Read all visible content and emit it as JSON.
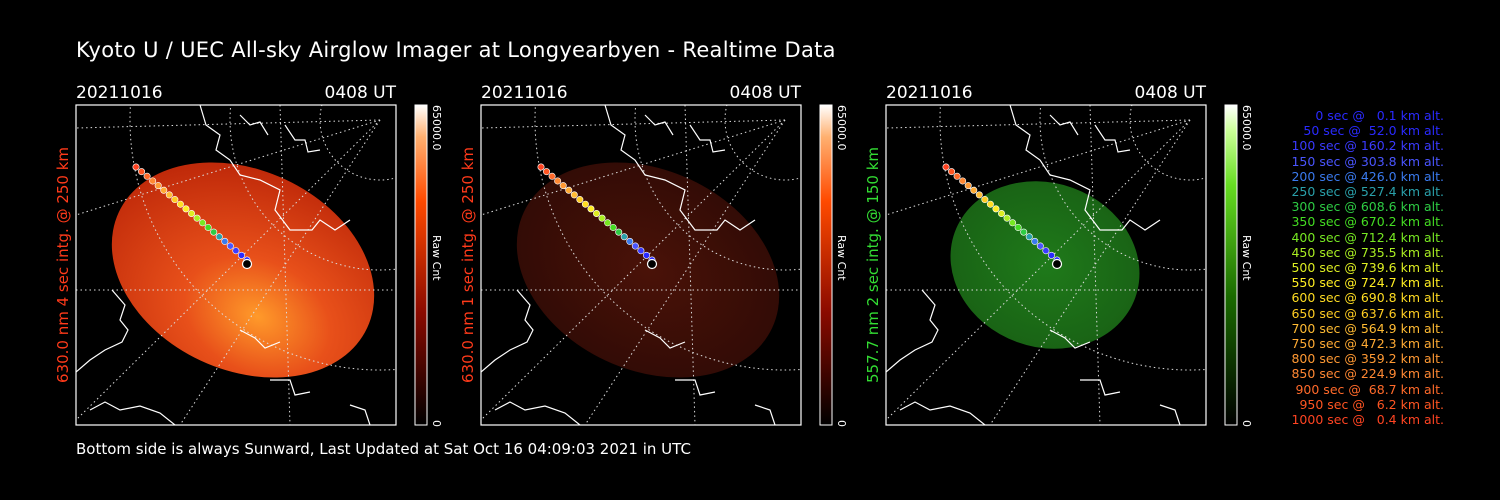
{
  "title": "Kyoto U / UEC All-sky Airglow Imager at Longyearbyen - Realtime Data",
  "footer": "Bottom side is always Sunward, Last Updated at Sat Oct 16 04:09:03 2021 in UTC",
  "panels": [
    {
      "date": "20211016",
      "time": "0408 UT",
      "side_label": "630.0 nm 4 sec intg. @ 250 km",
      "side_label_color": "#ff3a1a",
      "colorbar_top": "65000.0",
      "colorbar_bottom": "0",
      "colorbar_label": "Raw Cnt",
      "image_tint": "bright-red",
      "colorbar_color": "#ff2a00"
    },
    {
      "date": "20211016",
      "time": "0408 UT",
      "side_label": "630.0 nm 1 sec intg. @ 250 km",
      "side_label_color": "#ff3a1a",
      "colorbar_top": "65000.0",
      "colorbar_bottom": "0",
      "colorbar_label": "Raw Cnt",
      "image_tint": "dark-red",
      "colorbar_color": "#ff2a00"
    },
    {
      "date": "20211016",
      "time": "0408 UT",
      "side_label": "557.7 nm 2 sec intg. @ 150 km",
      "side_label_color": "#33dd33",
      "colorbar_top": "65000.0",
      "colorbar_bottom": "0",
      "colorbar_label": "Raw Cnt",
      "image_tint": "green",
      "colorbar_color": "#2ecc00"
    }
  ],
  "legend": [
    {
      "text": "0 sec @   0.1 km alt.",
      "color": "#2a2aff"
    },
    {
      "text": "50 sec @  52.0 km alt.",
      "color": "#2a2aff"
    },
    {
      "text": "100 sec @ 160.2 km alt.",
      "color": "#3a3aff"
    },
    {
      "text": "150 sec @ 303.8 km alt.",
      "color": "#4a55ff"
    },
    {
      "text": "200 sec @ 426.0 km alt.",
      "color": "#3a7aee"
    },
    {
      "text": "250 sec @ 527.4 km alt.",
      "color": "#2aa0aa"
    },
    {
      "text": "300 sec @ 608.6 km alt.",
      "color": "#2ecc44"
    },
    {
      "text": "350 sec @ 670.2 km alt.",
      "color": "#44dd22"
    },
    {
      "text": "400 sec @ 712.4 km alt.",
      "color": "#77e822"
    },
    {
      "text": "450 sec @ 735.5 km alt.",
      "color": "#aaee22"
    },
    {
      "text": "500 sec @ 739.6 km alt.",
      "color": "#ddee22"
    },
    {
      "text": "550 sec @ 724.7 km alt.",
      "color": "#ffee22"
    },
    {
      "text": "600 sec @ 690.8 km alt.",
      "color": "#ffdd22"
    },
    {
      "text": "650 sec @ 637.6 km alt.",
      "color": "#ffcc22"
    },
    {
      "text": "700 sec @ 564.9 km alt.",
      "color": "#ffbb33"
    },
    {
      "text": "750 sec @ 472.3 km alt.",
      "color": "#ffaa33"
    },
    {
      "text": "800 sec @ 359.2 km alt.",
      "color": "#ff9933"
    },
    {
      "text": "850 sec @ 224.9 km alt.",
      "color": "#ff8833"
    },
    {
      "text": "900 sec @  68.7 km alt.",
      "color": "#ff6a2a"
    },
    {
      "text": "950 sec @   6.2 km alt.",
      "color": "#ff5522"
    },
    {
      "text": "1000 sec @   0.4 km alt.",
      "color": "#ff4422"
    }
  ]
}
